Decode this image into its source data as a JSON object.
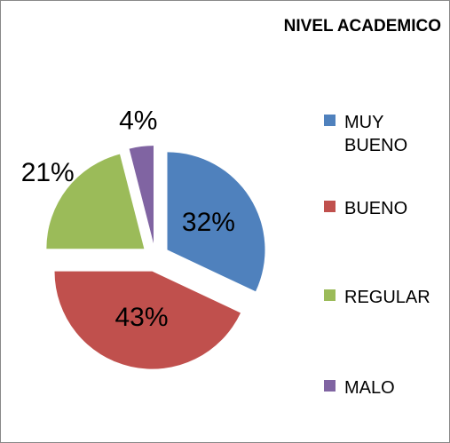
{
  "chart_data": {
    "type": "pie",
    "title": "NIVEL ACADEMICO",
    "categories": [
      "MUY BUENO",
      "BUENO",
      "REGULAR",
      "MALO"
    ],
    "values": [
      32,
      43,
      21,
      4
    ],
    "value_labels": [
      "32%",
      "43%",
      "21%",
      "4%"
    ],
    "colors": [
      "#4f81bd",
      "#c0504d",
      "#9bbb59",
      "#8064a2"
    ],
    "legend": "right"
  }
}
